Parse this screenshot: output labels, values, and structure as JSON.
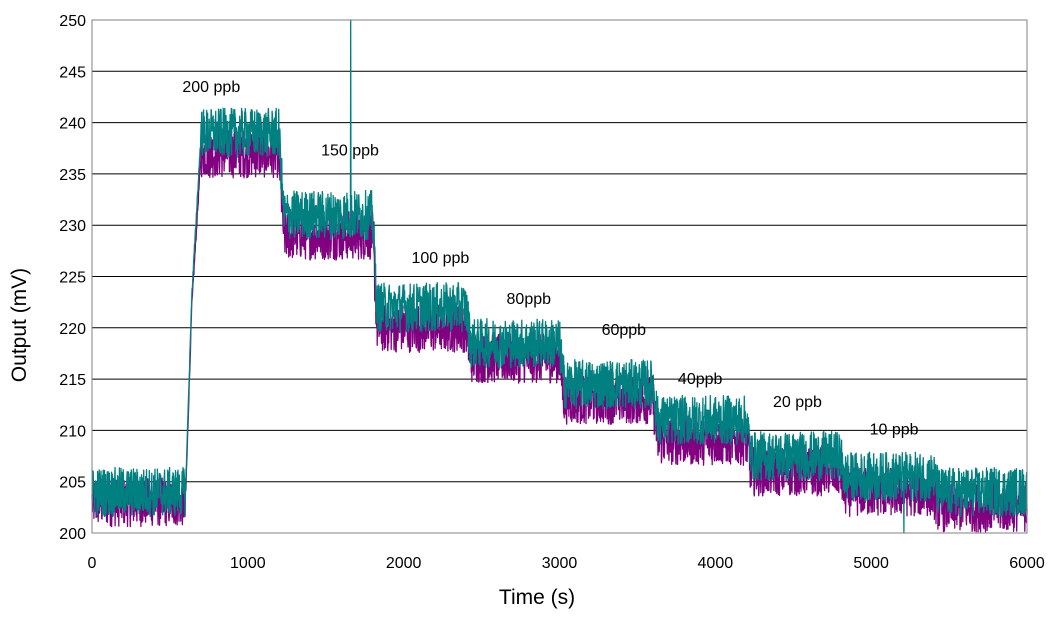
{
  "chart_data": {
    "type": "line",
    "xlabel": "Time (s)",
    "ylabel": "Output (mV)",
    "xlim": [
      0,
      6000
    ],
    "ylim": [
      200,
      250
    ],
    "xticks": [
      "0",
      "1000",
      "2000",
      "3000",
      "4000",
      "5000",
      "6000"
    ],
    "yticks": [
      "200",
      "205",
      "210",
      "215",
      "220",
      "225",
      "230",
      "235",
      "240",
      "245",
      "250"
    ],
    "grid": "horizontal",
    "series": [
      {
        "color": "#800080",
        "x": [
          0,
          600,
          640,
          700,
          1200,
          1230,
          1800,
          1830,
          2400,
          2430,
          3000,
          3030,
          3600,
          3630,
          4200,
          4230,
          4800,
          4830,
          5400,
          5430,
          6000
        ],
        "y": [
          203,
          203,
          222,
          237,
          237,
          229,
          229,
          220,
          220,
          217,
          217,
          213,
          213,
          209,
          209,
          206,
          206,
          204,
          204,
          202.5,
          202.5
        ]
      },
      {
        "color": "#008080",
        "x": [
          0,
          600,
          640,
          700,
          1200,
          1230,
          1800,
          1830,
          2400,
          2430,
          3000,
          3030,
          3600,
          3630,
          4200,
          4230,
          4800,
          4830,
          5400,
          5430,
          6000
        ],
        "y": [
          204,
          204,
          223,
          239,
          239,
          231,
          231,
          222,
          222,
          218.5,
          218.5,
          214.5,
          214.5,
          211,
          211,
          207.5,
          207.5,
          205.5,
          205.5,
          204,
          204
        ]
      }
    ],
    "annotations": [
      {
        "text": "200 ppb",
        "x": 580,
        "y": 243
      },
      {
        "text": "150 ppb",
        "x": 1470,
        "y": 236.8
      },
      {
        "text": "100 ppb",
        "x": 2050,
        "y": 226.3
      },
      {
        "text": "80ppb",
        "x": 2660,
        "y": 222.3
      },
      {
        "text": "60ppb",
        "x": 3270,
        "y": 219.3
      },
      {
        "text": "40ppb",
        "x": 3760,
        "y": 214.5
      },
      {
        "text": "20 ppb",
        "x": 4370,
        "y": 212.3
      },
      {
        "text": "10 ppb",
        "x": 4990,
        "y": 209.6
      }
    ]
  }
}
